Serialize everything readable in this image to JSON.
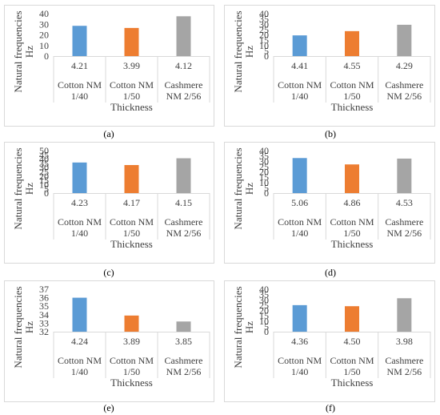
{
  "colors": {
    "blue": "#5b9bd5",
    "orange": "#ed7d31",
    "gray": "#a5a5a5",
    "gridline": "#d9d9d9"
  },
  "chart_data": [
    {
      "type": "bar",
      "panel_label": "(a)",
      "ylabel": "Natural frequencies Hz",
      "xlabel": "Thickness",
      "ylim": [
        0,
        40
      ],
      "yticks": [
        0,
        10,
        20,
        30,
        40
      ],
      "categories": [
        [
          "Cotton NM",
          "1/40"
        ],
        [
          "Cotton NM",
          "1/50"
        ],
        [
          "Cashmere",
          "NM 2/56"
        ]
      ],
      "values": [
        28.5,
        26.5,
        37.5
      ],
      "data_labels": [
        "4.21",
        "3.99",
        "4.12"
      ]
    },
    {
      "type": "bar",
      "panel_label": "(b)",
      "ylabel": "Natural frequencies Hz",
      "xlabel": "Thickness",
      "ylim": [
        0,
        40
      ],
      "yticks": [
        0,
        5,
        10,
        15,
        20,
        25,
        30,
        35,
        40
      ],
      "categories": [
        [
          "Cotton NM",
          "1/40"
        ],
        [
          "Cotton NM",
          "1/50"
        ],
        [
          "Cashmere",
          "NM 2/56"
        ]
      ],
      "values": [
        19.5,
        23.5,
        29.5
      ],
      "data_labels": [
        "4.41",
        "4.55",
        "4.29"
      ]
    },
    {
      "type": "bar",
      "panel_label": "(c)",
      "ylabel": "Natural frequencies Hz",
      "xlabel": "Thickness",
      "ylim": [
        0,
        50
      ],
      "yticks": [
        0,
        5,
        10,
        15,
        20,
        25,
        30,
        35,
        40,
        45,
        50
      ],
      "categories": [
        [
          "Cotton NM",
          "1/40"
        ],
        [
          "Cotton NM",
          "1/50"
        ],
        [
          "Cashmere",
          "NM 2/56"
        ]
      ],
      "values": [
        36,
        33,
        41
      ],
      "data_labels": [
        "4.23",
        "4.17",
        "4.15"
      ]
    },
    {
      "type": "bar",
      "panel_label": "(d)",
      "ylabel": "Natural frequencies Hz",
      "xlabel": "Thickness",
      "ylim": [
        0,
        40
      ],
      "yticks": [
        0,
        5,
        10,
        15,
        20,
        25,
        30,
        35,
        40
      ],
      "categories": [
        [
          "Cotton NM",
          "1/40"
        ],
        [
          "Cotton NM",
          "1/50"
        ],
        [
          "Cashmere",
          "NM 2/56"
        ]
      ],
      "values": [
        33,
        27,
        32.5
      ],
      "data_labels": [
        "5.06",
        "4.86",
        "4.53"
      ]
    },
    {
      "type": "bar",
      "panel_label": "(e)",
      "ylabel": "Natural frequencies Hz",
      "xlabel": "Thickness",
      "ylim": [
        32,
        37
      ],
      "yticks": [
        32,
        33,
        34,
        35,
        36,
        37
      ],
      "categories": [
        [
          "Cotton NM",
          "1/40"
        ],
        [
          "Cotton NM",
          "1/50"
        ],
        [
          "Cashmere",
          "NM 2/56"
        ]
      ],
      "values": [
        36,
        33.9,
        33.2
      ],
      "data_labels": [
        "4.24",
        "3.89",
        "3.85"
      ]
    },
    {
      "type": "bar",
      "panel_label": "(f)",
      "ylabel": "Natural frequencies Hz",
      "xlabel": "Thickness",
      "ylim": [
        0,
        40
      ],
      "yticks": [
        0,
        5,
        10,
        15,
        20,
        25,
        30,
        35,
        40
      ],
      "categories": [
        [
          "Cotton NM",
          "1/40"
        ],
        [
          "Cotton NM",
          "1/50"
        ],
        [
          "Cashmere",
          "NM 2/56"
        ]
      ],
      "values": [
        25,
        24,
        31.5
      ],
      "data_labels": [
        "4.36",
        "4.50",
        "3.98"
      ]
    }
  ]
}
